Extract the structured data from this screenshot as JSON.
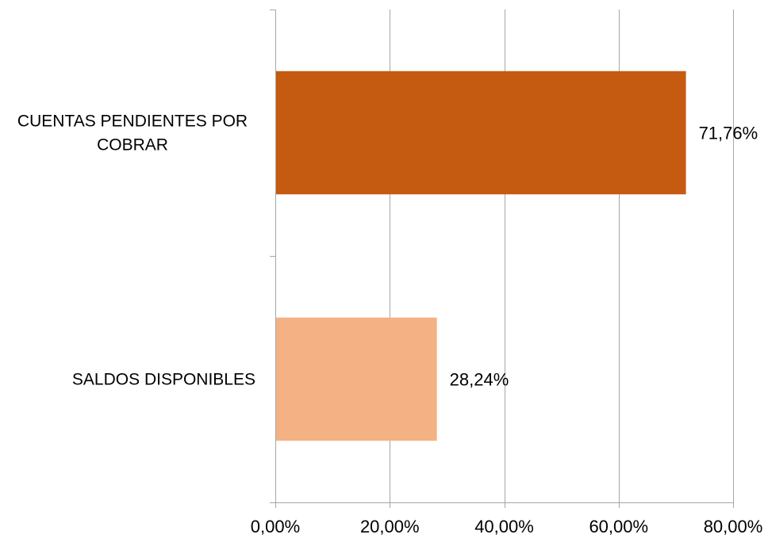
{
  "chart_data": {
    "type": "bar",
    "orientation": "horizontal",
    "categories": [
      "CUENTAS PENDIENTES POR COBRAR",
      "SALDOS DISPONIBLES"
    ],
    "category_lines": [
      [
        "CUENTAS PENDIENTES POR",
        "COBRAR"
      ],
      [
        "SALDOS DISPONIBLES"
      ]
    ],
    "values": [
      71.76,
      28.24
    ],
    "data_labels": [
      "71,76%",
      "28,24%"
    ],
    "bar_colors": [
      "#C55A11",
      "#F4B183"
    ],
    "xlim": [
      0,
      80
    ],
    "xticks": [
      0,
      20,
      40,
      60,
      80
    ],
    "xtick_labels": [
      "0,00%",
      "20,00%",
      "40,00%",
      "60,00%",
      "80,00%"
    ],
    "title": "",
    "xlabel": "",
    "ylabel": "",
    "grid": "vertical",
    "gridline_color": "#A6A6A6",
    "legend": "none"
  }
}
